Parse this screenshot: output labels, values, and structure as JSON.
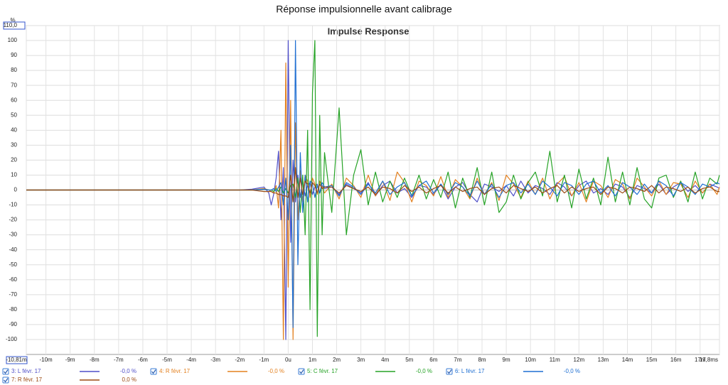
{
  "chart_data": {
    "type": "line",
    "title": "Réponse impulsionnelle avant calibrage",
    "subtitle": "Impulse Response",
    "y_label": "%",
    "xlim": [
      -10.81,
      17.8
    ],
    "ylim": [
      -110,
      110
    ],
    "xticks": [
      {
        "value": -10.81,
        "label": "-10,81m"
      },
      {
        "value": -10,
        "label": "-10m"
      },
      {
        "value": -9,
        "label": "-9m"
      },
      {
        "value": -8,
        "label": "-8m"
      },
      {
        "value": -7,
        "label": "-7m"
      },
      {
        "value": -6,
        "label": "-6m"
      },
      {
        "value": -5,
        "label": "-5m"
      },
      {
        "value": -4,
        "label": "-4m"
      },
      {
        "value": -3,
        "label": "-3m"
      },
      {
        "value": -2,
        "label": "-2m"
      },
      {
        "value": -1,
        "label": "-1m"
      },
      {
        "value": 0,
        "label": "0u"
      },
      {
        "value": 1,
        "label": "1m"
      },
      {
        "value": 2,
        "label": "2m"
      },
      {
        "value": 3,
        "label": "3m"
      },
      {
        "value": 4,
        "label": "4m"
      },
      {
        "value": 5,
        "label": "5m"
      },
      {
        "value": 6,
        "label": "6m"
      },
      {
        "value": 7,
        "label": "7m"
      },
      {
        "value": 8,
        "label": "8m"
      },
      {
        "value": 9,
        "label": "9m"
      },
      {
        "value": 10,
        "label": "10m"
      },
      {
        "value": 11,
        "label": "11m"
      },
      {
        "value": 12,
        "label": "12m"
      },
      {
        "value": 13,
        "label": "13m"
      },
      {
        "value": 14,
        "label": "14m"
      },
      {
        "value": 15,
        "label": "15m"
      },
      {
        "value": 16,
        "label": "16m"
      },
      {
        "value": 17,
        "label": "17m"
      },
      {
        "value": 17.8,
        "label": "17,8ms"
      }
    ],
    "yticks": [
      {
        "value": 110,
        "label": "110,0"
      },
      100,
      90,
      80,
      70,
      60,
      50,
      40,
      30,
      20,
      10,
      0,
      -10,
      -20,
      -30,
      -40,
      -50,
      -60,
      -70,
      -80,
      -90,
      -100
    ],
    "grid": true,
    "x": [
      -10.81,
      -2,
      -1.5,
      -1,
      -0.8,
      -0.7,
      -0.6,
      -0.5,
      -0.4,
      -0.3,
      -0.2,
      -0.1,
      0,
      0.1,
      0.2,
      0.3,
      0.4,
      0.5,
      0.6,
      0.7,
      0.8,
      0.9,
      1,
      1.1,
      1.2,
      1.3,
      1.4,
      1.5,
      1.8,
      2.1,
      2.4,
      2.7,
      3,
      3.3,
      3.6,
      3.9,
      4.2,
      4.5,
      4.8,
      5.1,
      5.4,
      5.7,
      6,
      6.3,
      6.6,
      6.9,
      7.2,
      7.5,
      7.8,
      8.1,
      8.4,
      8.7,
      9,
      9.3,
      9.6,
      9.9,
      10.2,
      10.5,
      10.8,
      11.1,
      11.4,
      11.7,
      12,
      12.3,
      12.6,
      12.9,
      13.2,
      13.5,
      13.8,
      14.1,
      14.4,
      14.7,
      15,
      15.3,
      15.6,
      15.9,
      16.2,
      16.5,
      16.8,
      17.1,
      17.4,
      17.7,
      17.8
    ],
    "series": [
      {
        "name": "3: L févr. 17",
        "legend_value": "-0,0 %",
        "color": "#4f4fc8",
        "values": [
          0,
          0,
          0.5,
          2,
          -2,
          -10,
          -3,
          8,
          26,
          -20,
          15,
          -100,
          100,
          -35,
          20,
          -8,
          10,
          -5,
          6,
          -4,
          3,
          5,
          -3,
          2,
          4,
          -2,
          3,
          1,
          2,
          -3,
          4,
          1,
          -2,
          5,
          -4,
          3,
          6,
          -2,
          1,
          -5,
          3,
          2,
          -3,
          4,
          -6,
          2,
          5,
          -3,
          -8,
          4,
          2,
          -1,
          3,
          -4,
          6,
          -2,
          3,
          1,
          -3,
          5,
          2,
          -4,
          3,
          6,
          -2,
          1,
          -3,
          4,
          2,
          -5,
          3,
          1,
          -2,
          4,
          -3,
          2,
          5,
          -1,
          3,
          -2,
          4,
          2,
          1
        ]
      },
      {
        "name": "4: R févr. 17",
        "legend_value": "-0,0 %",
        "color": "#e3801f",
        "values": [
          0,
          0,
          0,
          1,
          0,
          -1,
          -2,
          3,
          -12,
          40,
          -100,
          85,
          -65,
          60,
          -100,
          45,
          -20,
          13,
          -8,
          10,
          6,
          -5,
          8,
          4,
          -3,
          6,
          2,
          -2,
          4,
          -6,
          8,
          3,
          -5,
          10,
          -4,
          6,
          -7,
          12,
          5,
          -8,
          6,
          3,
          -4,
          9,
          -5,
          7,
          2,
          -6,
          8,
          -3,
          5,
          -7,
          10,
          4,
          -5,
          6,
          -3,
          8,
          -6,
          4,
          9,
          -4,
          5,
          -8,
          6,
          3,
          -5,
          7,
          4,
          -6,
          8,
          2,
          -4,
          6,
          -3,
          5,
          4,
          -5,
          6,
          -2,
          4,
          -3,
          2
        ]
      },
      {
        "name": "5: C févr. 17",
        "legend_value": "-0,0 %",
        "color": "#26a326",
        "values": [
          0,
          0,
          0,
          0.5,
          0,
          0,
          -1,
          1,
          -1,
          2,
          -2,
          1,
          -2,
          3,
          4,
          -5,
          8,
          -15,
          10,
          -30,
          40,
          -80,
          65,
          100,
          -98,
          50,
          -30,
          25,
          -15,
          55,
          -30,
          10,
          27,
          -10,
          12,
          -8,
          6,
          -5,
          8,
          -4,
          10,
          -6,
          7,
          -5,
          12,
          -12,
          8,
          -5,
          15,
          -10,
          12,
          -15,
          -8,
          10,
          -6,
          5,
          12,
          -4,
          26,
          -8,
          10,
          -12,
          14,
          -6,
          8,
          -10,
          22,
          -8,
          12,
          -10,
          15,
          -6,
          -12,
          8,
          10,
          -5,
          6,
          -8,
          12,
          -6,
          8,
          4,
          10
        ]
      },
      {
        "name": "6: L févr. 17",
        "legend_value": "-0,0 %",
        "color": "#1f6fd2",
        "values": [
          0,
          0,
          0,
          0.5,
          0,
          0,
          1,
          -1,
          2,
          5,
          -10,
          8,
          -20,
          30,
          -92,
          100,
          -50,
          25,
          -15,
          10,
          -8,
          6,
          4,
          -5,
          3,
          -2,
          5,
          2,
          3,
          -4,
          5,
          2,
          -3,
          4,
          -2,
          6,
          -3,
          2,
          5,
          -4,
          3,
          6,
          -2,
          4,
          -3,
          5,
          2,
          -4,
          6,
          -3,
          4,
          -5,
          3,
          5,
          -2,
          4,
          -3,
          6,
          2,
          -4,
          5,
          3,
          -3,
          4,
          6,
          -2,
          3,
          -4,
          5,
          2,
          -3,
          4,
          -2,
          6,
          3,
          -4,
          5,
          2,
          -3,
          4,
          2,
          5,
          4
        ]
      },
      {
        "name": "7: R févr. 17",
        "legend_value": "0,0 %",
        "color": "#9b4a12",
        "values": [
          0,
          0,
          0,
          -1,
          -1,
          -1,
          -2,
          -2,
          -3,
          -3,
          -4,
          -4,
          -5,
          10,
          -8,
          15,
          -5,
          8,
          -3,
          6,
          4,
          -2,
          5,
          3,
          -2,
          4,
          1,
          2,
          2,
          -2,
          3,
          1,
          -1,
          2,
          -3,
          2,
          1,
          -2,
          3,
          -1,
          2,
          -2,
          1,
          3,
          -2,
          2,
          -1,
          1,
          2,
          -3,
          1,
          2,
          -2,
          3,
          1,
          -1,
          2,
          -2,
          1,
          3,
          -2,
          2,
          -1,
          1,
          2,
          -3,
          2,
          1,
          -2,
          2,
          1,
          -1,
          3,
          -2,
          2,
          1,
          -1,
          2,
          -2,
          1,
          2,
          -1,
          -1
        ]
      }
    ]
  }
}
